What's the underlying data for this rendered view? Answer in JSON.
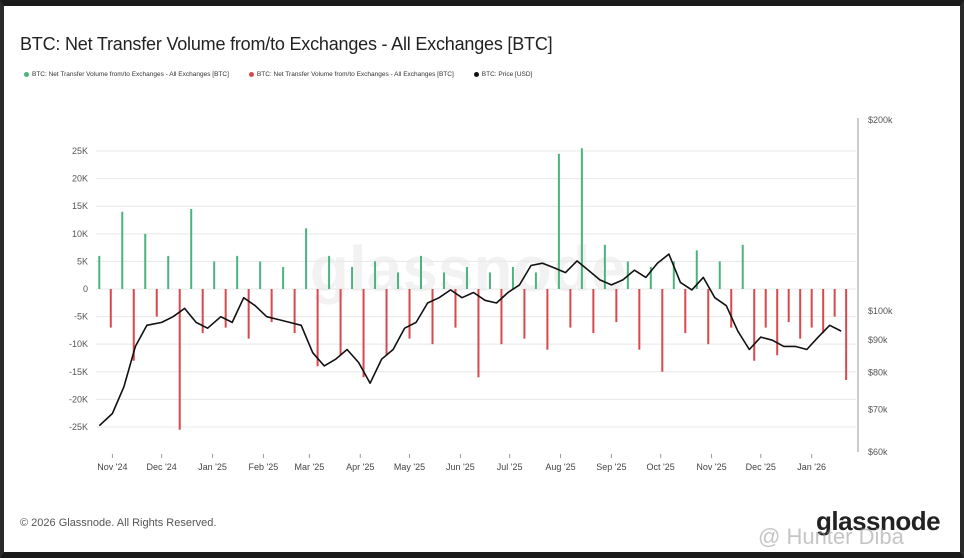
{
  "chart_data": {
    "type": "bar",
    "title": "BTC: Net Transfer Volume from/to Exchanges - All Exchanges [BTC]",
    "legend": [
      {
        "name": "BTC: Net Transfer Volume from/to Exchanges - All Exchanges [BTC]",
        "color": "#4bb37e"
      },
      {
        "name": "BTC: Net Transfer Volume from/to Exchanges - All Exchanges [BTC]",
        "color": "#d9484d"
      },
      {
        "name": "BTC: Price [USD]",
        "color": "#111111"
      }
    ],
    "x_ticks": [
      "Nov '24",
      "Dec '24",
      "Jan '25",
      "Feb '25",
      "Mar '25",
      "Apr '25",
      "May '25",
      "Jun '25",
      "Jul '25",
      "Aug '25",
      "Sep '25",
      "Oct '25",
      "Nov '25",
      "Dec '25",
      "Jan '26"
    ],
    "y_left_ticks": [
      "25K",
      "20K",
      "15K",
      "10K",
      "5K",
      "0",
      "-5K",
      "-10K",
      "-15K",
      "-20K",
      "-25K"
    ],
    "y_left_range": [
      -27000,
      27000
    ],
    "y_right_ticks": [
      "$200k",
      "$100k",
      "$90k",
      "$80k",
      "$70k",
      "$60k"
    ],
    "y_right_range": [
      60000,
      200000
    ],
    "y_right_scale": "log",
    "grid": "horizontal",
    "watermark": "glassnode",
    "series": [
      {
        "name": "BTC: Net Transfer Volume from/to Exchanges - All Exchanges [BTC]",
        "kind": "bar",
        "note": "weekly-sampled approximate values",
        "x": [
          "2024-10-24",
          "2024-10-31",
          "2024-11-07",
          "2024-11-14",
          "2024-11-21",
          "2024-11-28",
          "2024-12-05",
          "2024-12-12",
          "2024-12-19",
          "2024-12-26",
          "2025-01-02",
          "2025-01-09",
          "2025-01-16",
          "2025-01-23",
          "2025-01-30",
          "2025-02-06",
          "2025-02-13",
          "2025-02-20",
          "2025-02-27",
          "2025-03-06",
          "2025-03-13",
          "2025-03-20",
          "2025-03-27",
          "2025-04-03",
          "2025-04-10",
          "2025-04-17",
          "2025-04-24",
          "2025-05-01",
          "2025-05-08",
          "2025-05-15",
          "2025-05-22",
          "2025-05-29",
          "2025-06-05",
          "2025-06-12",
          "2025-06-19",
          "2025-06-26",
          "2025-07-03",
          "2025-07-10",
          "2025-07-17",
          "2025-07-24",
          "2025-07-31",
          "2025-08-07",
          "2025-08-14",
          "2025-08-21",
          "2025-08-28",
          "2025-09-04",
          "2025-09-11",
          "2025-09-18",
          "2025-09-25",
          "2025-10-02",
          "2025-10-09",
          "2025-10-16",
          "2025-10-23",
          "2025-10-30",
          "2025-11-06",
          "2025-11-13",
          "2025-11-20",
          "2025-11-27",
          "2025-12-04",
          "2025-12-11",
          "2025-12-18",
          "2025-12-25",
          "2026-01-01",
          "2026-01-08",
          "2026-01-15",
          "2026-01-22"
        ],
        "values": [
          6000,
          -7000,
          14000,
          -13000,
          10000,
          -5000,
          6000,
          -25500,
          14500,
          -8000,
          5000,
          -7000,
          6000,
          -9000,
          5000,
          -6000,
          4000,
          -8000,
          11000,
          -14000,
          6000,
          -12000,
          4000,
          -16000,
          5000,
          -12000,
          3000,
          -9000,
          6000,
          -10000,
          3000,
          -7000,
          4000,
          -16000,
          3000,
          -10000,
          4000,
          -9000,
          3000,
          -11000,
          24500,
          -7000,
          25500,
          -8000,
          8000,
          -6000,
          5000,
          -11000,
          4000,
          -15000,
          5000,
          -8000,
          7000,
          -10000,
          5000,
          -7000,
          8000,
          -13000,
          -7000,
          -12000,
          -6000,
          -9000,
          -7000,
          -8000,
          -5000,
          -16500
        ]
      },
      {
        "name": "BTC: Price [USD]",
        "kind": "line",
        "x": [
          "2024-10-24",
          "2024-11-01",
          "2024-11-08",
          "2024-11-15",
          "2024-11-22",
          "2024-12-01",
          "2024-12-08",
          "2024-12-15",
          "2024-12-22",
          "2024-12-29",
          "2025-01-06",
          "2025-01-13",
          "2025-01-20",
          "2025-01-27",
          "2025-02-03",
          "2025-02-10",
          "2025-02-17",
          "2025-02-24",
          "2025-03-03",
          "2025-03-10",
          "2025-03-17",
          "2025-03-24",
          "2025-03-31",
          "2025-04-07",
          "2025-04-14",
          "2025-04-21",
          "2025-04-28",
          "2025-05-05",
          "2025-05-12",
          "2025-05-19",
          "2025-05-26",
          "2025-06-02",
          "2025-06-09",
          "2025-06-16",
          "2025-06-23",
          "2025-06-30",
          "2025-07-07",
          "2025-07-14",
          "2025-07-21",
          "2025-07-28",
          "2025-08-04",
          "2025-08-11",
          "2025-08-18",
          "2025-08-25",
          "2025-09-01",
          "2025-09-08",
          "2025-09-15",
          "2025-09-22",
          "2025-09-29",
          "2025-10-06",
          "2025-10-13",
          "2025-10-20",
          "2025-10-27",
          "2025-11-03",
          "2025-11-10",
          "2025-11-17",
          "2025-11-24",
          "2025-12-01",
          "2025-12-08",
          "2025-12-15",
          "2025-12-22",
          "2025-12-29",
          "2026-01-05",
          "2026-01-12",
          "2026-01-19"
        ],
        "values": [
          66000,
          69000,
          76000,
          88000,
          95000,
          96000,
          98000,
          101000,
          96000,
          94000,
          98000,
          96000,
          105000,
          102000,
          98000,
          97000,
          96000,
          95000,
          86000,
          82000,
          84000,
          87000,
          83000,
          77000,
          84000,
          87000,
          94000,
          96000,
          103000,
          105000,
          108000,
          105000,
          107000,
          104000,
          103000,
          107000,
          110000,
          118000,
          119000,
          117000,
          115000,
          120000,
          116000,
          112000,
          110000,
          112000,
          116000,
          113000,
          119000,
          123000,
          111000,
          108000,
          113000,
          105000,
          102000,
          93000,
          87000,
          91000,
          90000,
          88000,
          88000,
          87000,
          91000,
          95000,
          93000
        ]
      }
    ]
  },
  "footer": {
    "copyright": "© 2026 Glassnode. All Rights Reserved.",
    "brand": "glassnode",
    "overlay_watermark": "@ Hunter Diba"
  }
}
